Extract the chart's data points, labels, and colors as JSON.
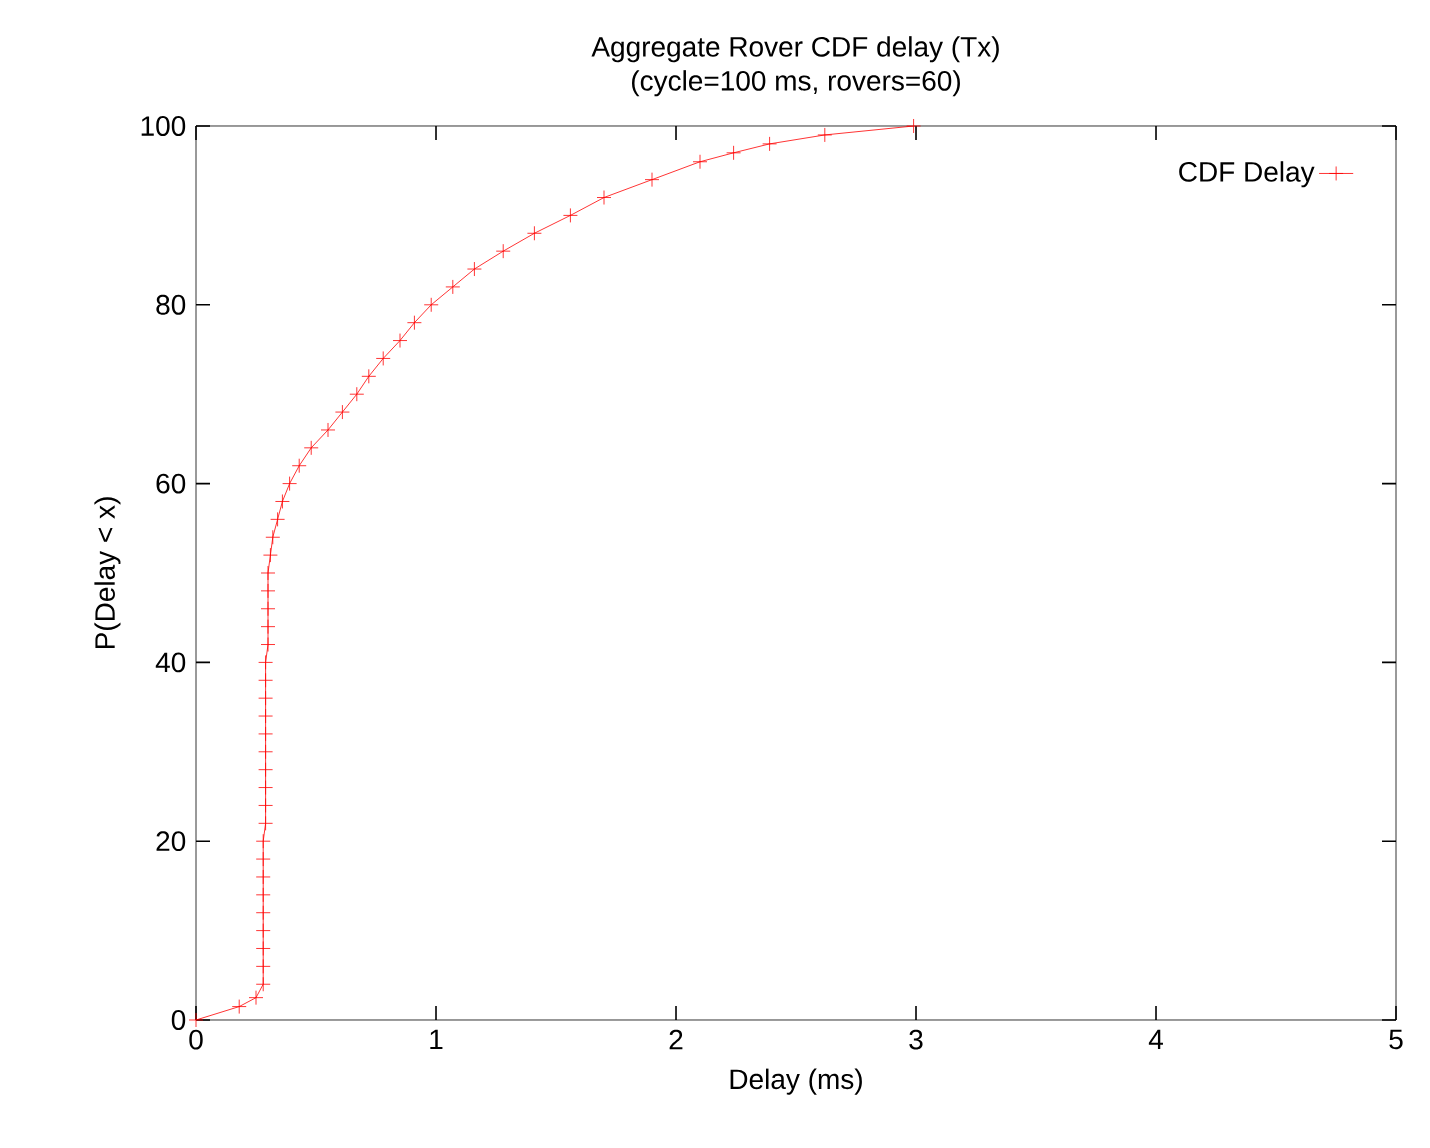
{
  "chart_data": {
    "type": "line",
    "title": "Aggregate Rover CDF delay (Tx)",
    "subtitle": "(cycle=100 ms, rovers=60)",
    "xlabel": "Delay (ms)",
    "ylabel": "P(Delay < x)",
    "x": [
      0,
      0.18,
      0.25,
      0.28,
      0.28,
      0.28,
      0.28,
      0.28,
      0.28,
      0.28,
      0.28,
      0.28,
      0.29,
      0.29,
      0.29,
      0.29,
      0.29,
      0.29,
      0.29,
      0.29,
      0.29,
      0.29,
      0.3,
      0.3,
      0.3,
      0.3,
      0.3,
      0.31,
      0.32,
      0.34,
      0.36,
      0.39,
      0.43,
      0.48,
      0.55,
      0.61,
      0.67,
      0.72,
      0.78,
      0.85,
      0.91,
      0.98,
      1.07,
      1.16,
      1.28,
      1.41,
      1.56,
      1.7,
      1.9,
      2.1,
      2.24,
      2.39,
      2.62,
      2.99
    ],
    "series": [
      {
        "name": "CDF Delay",
        "color": "#ff0000",
        "values": [
          0,
          1.5,
          2.5,
          4,
          6,
          8,
          10,
          12,
          14,
          16,
          18,
          20,
          22,
          24,
          26,
          28,
          30,
          32,
          34,
          36,
          38,
          40,
          42,
          44,
          46,
          48,
          50,
          52,
          54,
          56,
          58,
          60,
          62,
          64,
          66,
          68,
          70,
          72,
          74,
          76,
          78,
          80,
          82,
          84,
          86,
          88,
          90,
          92,
          94,
          96,
          97,
          98,
          99,
          100
        ]
      }
    ],
    "xlim": [
      0,
      5
    ],
    "ylim": [
      0,
      100
    ],
    "xticks": [
      0,
      1,
      2,
      3,
      4,
      5
    ],
    "yticks": [
      0,
      20,
      40,
      60,
      80,
      100
    ],
    "legend": "top right",
    "marker": "cross",
    "line_style": "solid",
    "grid": false
  }
}
